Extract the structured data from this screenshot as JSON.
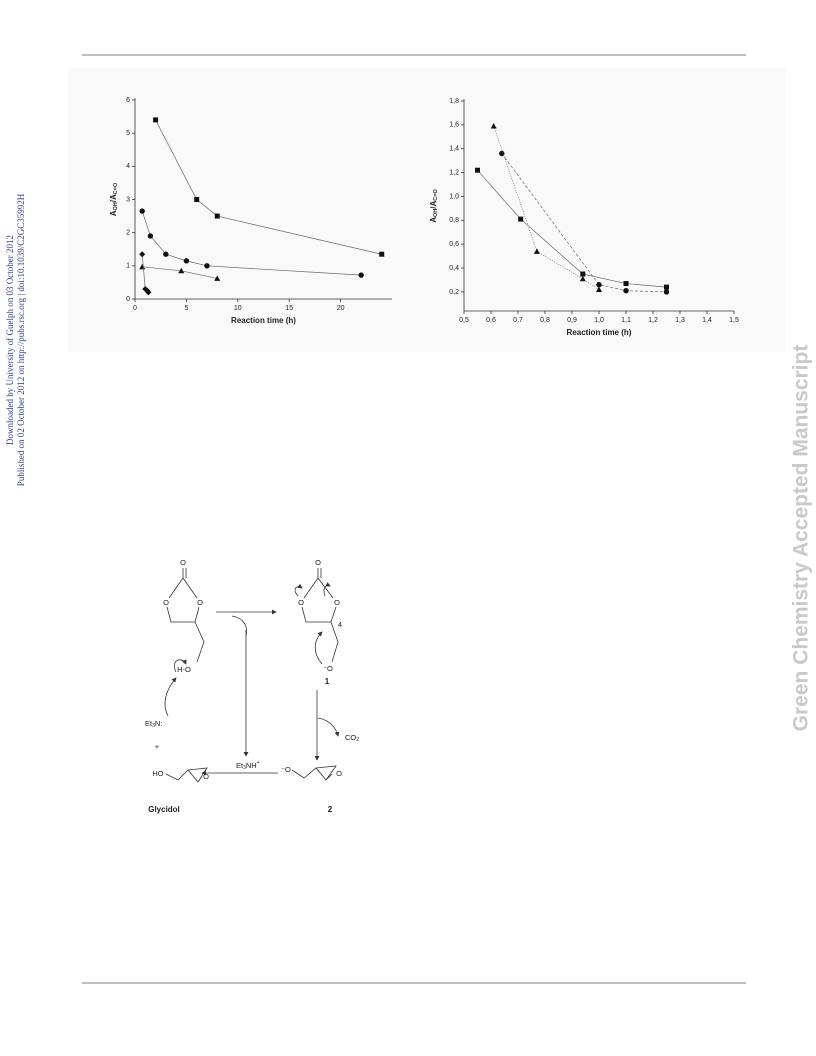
{
  "sidebar": {
    "line1": "Downloaded by University of Guelph on 03 October 2012",
    "line2": "Published on 02 October 2012 on http://pubs.rsc.org | doi:10.1039/C2GC35992H"
  },
  "watermark": "Green Chemistry Accepted Manuscript",
  "chart_data": [
    {
      "type": "scatter",
      "x_label": "Reaction time (h)",
      "y_label": [
        "A",
        "OH",
        "/A",
        "C=O"
      ],
      "xlim": [
        0,
        25
      ],
      "ylim": [
        0,
        6
      ],
      "xticks": [
        0,
        5,
        10,
        15,
        20
      ],
      "yticks": [
        0,
        1,
        2,
        3,
        4,
        5,
        6
      ],
      "series": [
        {
          "marker": "square",
          "color": "#111111",
          "line": "solid",
          "x": [
            2,
            6,
            8,
            24
          ],
          "values": [
            5.4,
            3.0,
            2.5,
            1.35
          ]
        },
        {
          "marker": "circle",
          "color": "#111111",
          "line": "solid",
          "x": [
            0.7,
            1.5,
            3,
            5,
            7,
            22
          ],
          "values": [
            2.65,
            1.9,
            1.35,
            1.15,
            1.0,
            0.72
          ]
        },
        {
          "marker": "triangle",
          "color": "#111111",
          "line": "solid",
          "x": [
            0.7,
            4.5,
            8
          ],
          "values": [
            0.97,
            0.85,
            0.62
          ]
        },
        {
          "marker": "diamond",
          "color": "#111111",
          "line": "solid",
          "x": [
            0.7,
            1,
            1.2,
            1.3
          ],
          "values": [
            1.35,
            0.3,
            0.25,
            0.2
          ]
        }
      ]
    },
    {
      "type": "scatter",
      "x_label": "Reaction time (h)",
      "y_label": [
        "A",
        "OH",
        "/A",
        "C=O"
      ],
      "xlim": [
        0.5,
        1.5
      ],
      "ylim": [
        0.04,
        1.8
      ],
      "xticks": [
        {
          "value": 0.5,
          "label": "0,5"
        },
        {
          "value": 0.6,
          "label": "0,6"
        },
        {
          "value": 0.7,
          "label": "0,7"
        },
        {
          "value": 0.8,
          "label": "0,8"
        },
        {
          "value": 0.9,
          "label": "0,9"
        },
        {
          "value": 1.0,
          "label": "1,0"
        },
        {
          "value": 1.1,
          "label": "1,1"
        },
        {
          "value": 1.2,
          "label": "1,2"
        },
        {
          "value": 1.3,
          "label": "1,3"
        },
        {
          "value": 1.4,
          "label": "1,4"
        },
        {
          "value": 1.5,
          "label": "1,5"
        }
      ],
      "yticks": [
        {
          "value": 0.2,
          "label": "0,2"
        },
        {
          "value": 0.4,
          "label": "0,4"
        },
        {
          "value": 0.6,
          "label": "0,6"
        },
        {
          "value": 0.8,
          "label": "0,8"
        },
        {
          "value": 1.0,
          "label": "1,0"
        },
        {
          "value": 1.2,
          "label": "1,2"
        },
        {
          "value": 1.4,
          "label": "1,4"
        },
        {
          "value": 1.6,
          "label": "1,6"
        },
        {
          "value": 1.8,
          "label": "1,8"
        }
      ],
      "series": [
        {
          "marker": "square",
          "color": "#111111",
          "line": "solid",
          "x": [
            0.55,
            0.71,
            0.94,
            1.1,
            1.25
          ],
          "values": [
            1.22,
            0.81,
            0.35,
            0.27,
            0.24
          ]
        },
        {
          "marker": "circle",
          "color": "#111111",
          "line": "dashed",
          "x": [
            0.64,
            1.0,
            1.1,
            1.25
          ],
          "values": [
            1.36,
            0.26,
            0.21,
            0.2
          ]
        },
        {
          "marker": "triangle",
          "color": "#111111",
          "line": "dotted",
          "x": [
            0.61,
            0.77,
            0.94,
            1.0
          ],
          "values": [
            1.59,
            0.54,
            0.31,
            0.22
          ]
        }
      ]
    }
  ],
  "scheme": {
    "reactant_atoms": [
      "O",
      "O",
      "O",
      "H-O"
    ],
    "et3n": [
      "Et",
      "3",
      "N:"
    ],
    "plus": "+",
    "glycidol_atoms": [
      "HO",
      "O"
    ],
    "glycidol": "Glycidol",
    "et3nh": [
      "Et",
      "3",
      "NH",
      "+"
    ],
    "intermediate_1_atoms": [
      "O",
      "O",
      "O",
      "4",
      "⁻O"
    ],
    "label_1": "1",
    "co2": [
      "CO",
      "2"
    ],
    "intermediate_2_atoms": [
      "⁻O",
      "O"
    ],
    "label_2": "2"
  }
}
